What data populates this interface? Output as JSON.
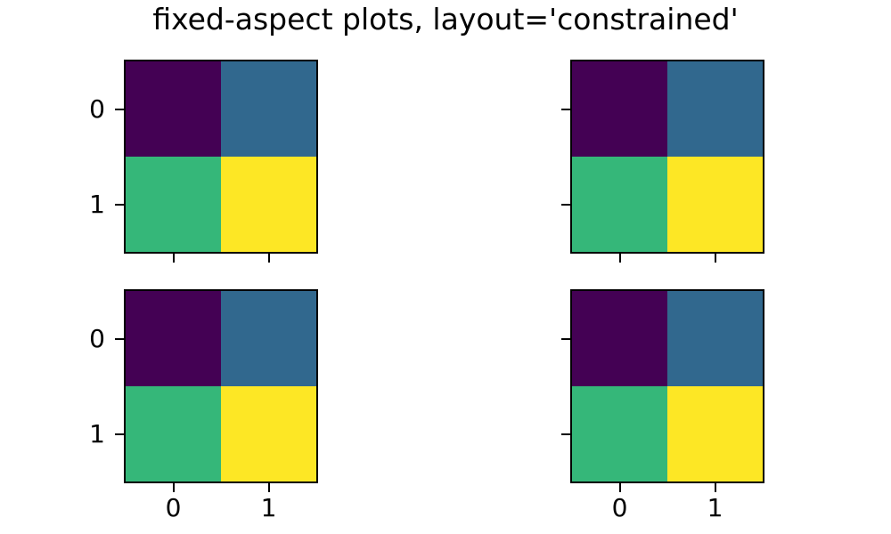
{
  "figure": {
    "title": "fixed-aspect plots, layout='constrained'",
    "background": "#ffffff",
    "text_color": "#000000"
  },
  "chart_data": {
    "type": "heatmap",
    "title": "fixed-aspect plots, layout='constrained'",
    "colormap": "viridis",
    "layout": "2x2 grid of subplots, fixed aspect, constrained layout, shared outer tick labels",
    "matrix": [
      [
        0,
        1
      ],
      [
        2,
        3
      ]
    ],
    "vmin": 0,
    "vmax": 3,
    "cell_colors": [
      [
        "#440154",
        "#31688e"
      ],
      [
        "#35b779",
        "#fde725"
      ]
    ],
    "x_tick_labels": [
      "0",
      "1"
    ],
    "y_tick_labels": [
      "0",
      "1"
    ],
    "subplots": [
      {
        "id": "top-left",
        "x_labels_visible": false,
        "y_labels_visible": true
      },
      {
        "id": "top-right",
        "x_labels_visible": false,
        "y_labels_visible": false
      },
      {
        "id": "bottom-left",
        "x_labels_visible": true,
        "y_labels_visible": true
      },
      {
        "id": "bottom-right",
        "x_labels_visible": true,
        "y_labels_visible": false
      }
    ]
  }
}
